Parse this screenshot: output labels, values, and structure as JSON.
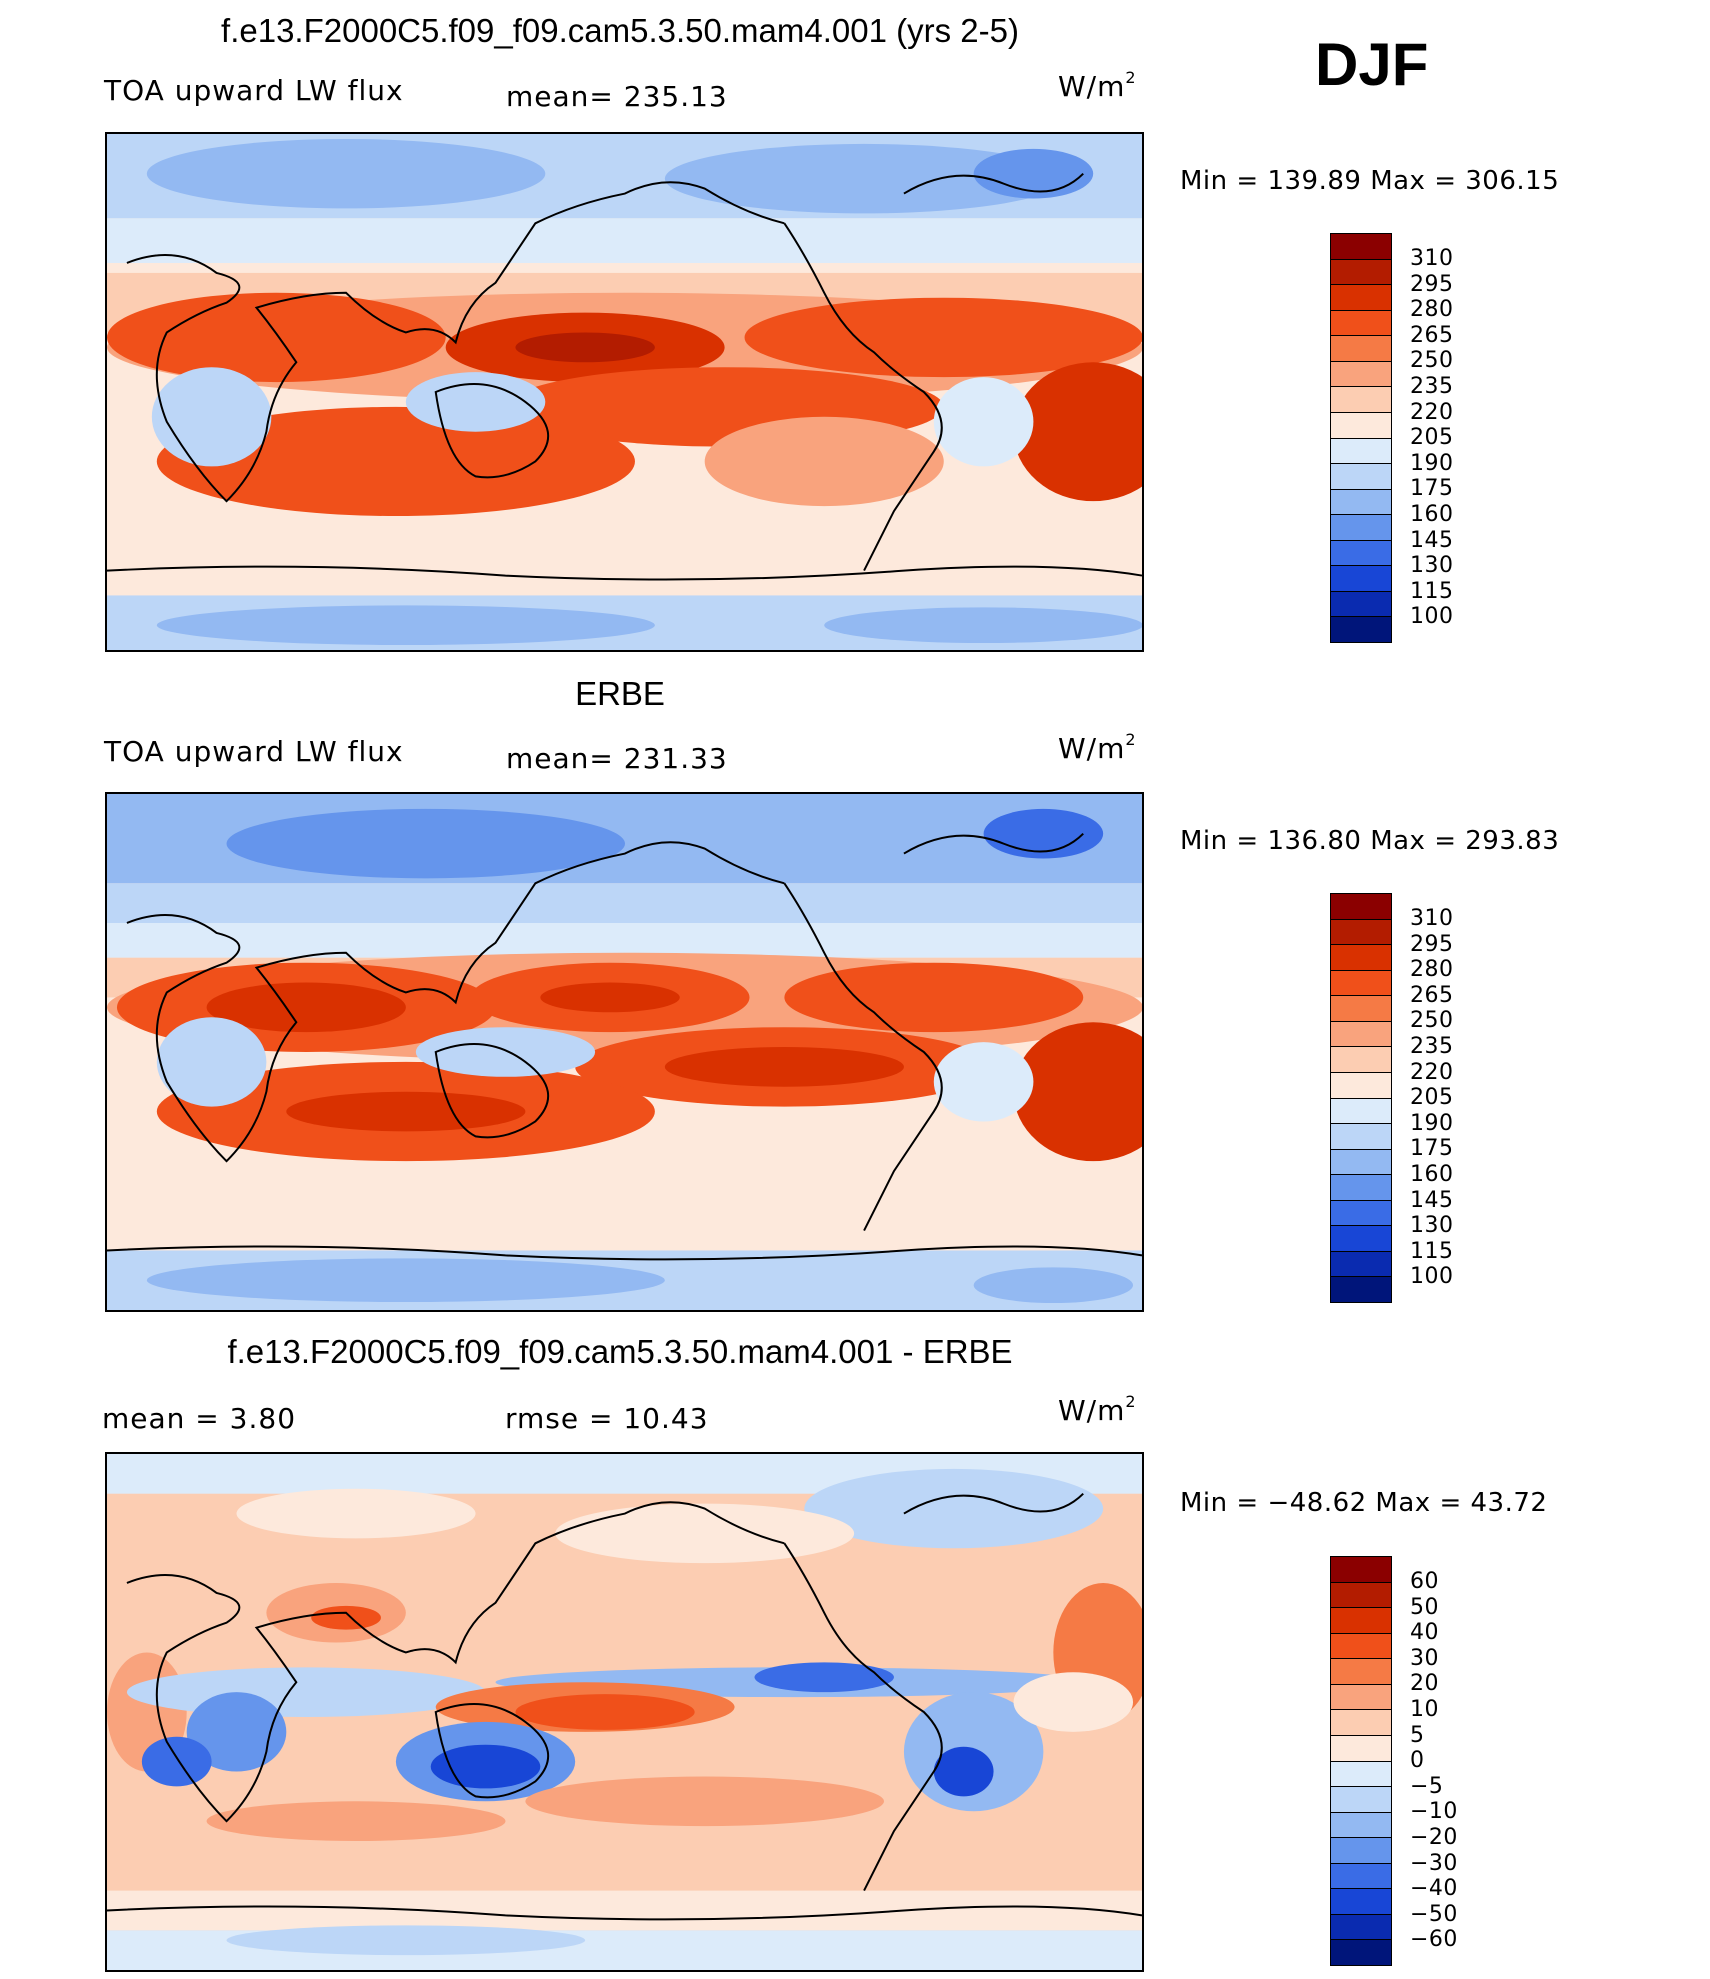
{
  "season": "DJF",
  "panels": [
    {
      "title": "f.e13.F2000C5.f09_f09.cam5.3.50.mam4.001 (yrs 2-5)",
      "left_label": "TOA upward LW flux",
      "stat_label": "mean= 235.13",
      "unit": "W/m",
      "unit_sup": "2",
      "minmax": "Min  =  139.89  Max  =  306.15",
      "colorbar_labels": [
        "310",
        "295",
        "280",
        "265",
        "250",
        "235",
        "220",
        "205",
        "190",
        "175",
        "160",
        "145",
        "130",
        "115",
        "100"
      ]
    },
    {
      "title": "ERBE",
      "left_label": "TOA upward LW flux",
      "stat_label": "mean= 231.33",
      "unit": "W/m",
      "unit_sup": "2",
      "minmax": "Min  =  136.80  Max  =  293.83",
      "colorbar_labels": [
        "310",
        "295",
        "280",
        "265",
        "250",
        "235",
        "220",
        "205",
        "190",
        "175",
        "160",
        "145",
        "130",
        "115",
        "100"
      ]
    },
    {
      "title": "f.e13.F2000C5.f09_f09.cam5.3.50.mam4.001 - ERBE",
      "left_label": "mean  =     3.80",
      "stat_label": "rmse  =    10.43",
      "unit": "W/m",
      "unit_sup": "2",
      "minmax": "Min  =  −48.62  Max  =    43.72",
      "colorbar_labels": [
        "60",
        "50",
        "40",
        "30",
        "20",
        "10",
        "5",
        "0",
        "−5",
        "−10",
        "−20",
        "−30",
        "−40",
        "−50",
        "−60"
      ]
    }
  ],
  "colors": {
    "abs_scale": [
      "#8b0000",
      "#b31c00",
      "#d93100",
      "#f0501a",
      "#f57a45",
      "#f9a37d",
      "#fccdb2",
      "#fde9dc",
      "#dcebfa",
      "#bcd6f7",
      "#93b9f2",
      "#6595ec",
      "#3a6ce6",
      "#1846d6",
      "#0a2bb0",
      "#00157a"
    ],
    "diff_scale": [
      "#8b0000",
      "#b31c00",
      "#d93100",
      "#f0501a",
      "#f57a45",
      "#f9a37d",
      "#fccdb2",
      "#fde9dc",
      "#dcebfa",
      "#bcd6f7",
      "#93b9f2",
      "#6595ec",
      "#3a6ce6",
      "#1846d6",
      "#0a2bb0",
      "#00157a"
    ],
    "coastline": "#000000"
  }
}
